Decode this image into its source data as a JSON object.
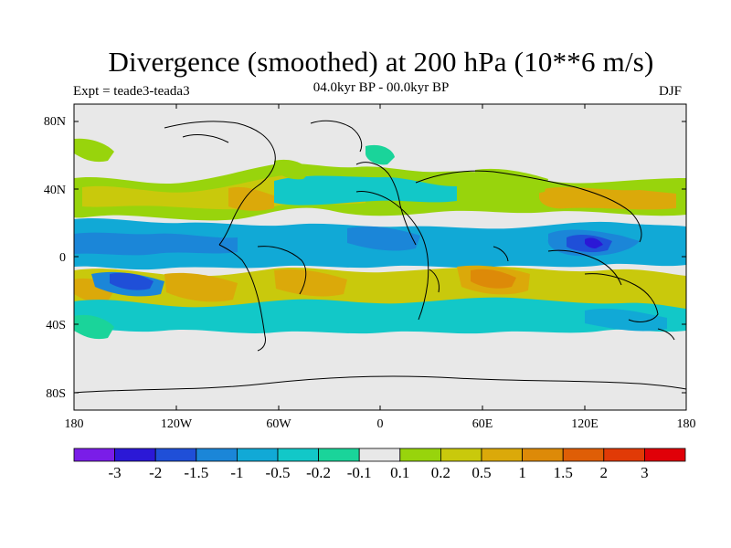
{
  "header": {
    "title": "Divergence (smoothed) at 200 hPa (10**6 m/s)",
    "experiment": "Expt = teade3-teada3",
    "period": "04.0kyr BP - 00.0kyr BP",
    "season": "DJF"
  },
  "chart_data": {
    "type": "heatmap",
    "title": "Divergence (smoothed) at 200 hPa (10**6 m/s)",
    "subtitle_left": "Expt = teade3-teada3",
    "subtitle_center": "04.0kyr BP - 00.0kyr BP",
    "subtitle_right": "DJF",
    "projection": "cylindrical equidistant, 180 to 180 longitude",
    "x_range": [
      -180,
      180
    ],
    "y_range": [
      -90,
      90
    ],
    "x_ticks": [
      "180",
      "120W",
      "60W",
      "0",
      "60E",
      "120E",
      "180"
    ],
    "y_ticks": [
      "80N",
      "40N",
      "0",
      "40S",
      "80S"
    ],
    "colorbar": {
      "labels": [
        "-3",
        "-2",
        "-1.5",
        "-1",
        "-0.5",
        "-0.2",
        "-0.1",
        "0.1",
        "0.2",
        "0.5",
        "1",
        "1.5",
        "2",
        "3"
      ],
      "colors": [
        "#7a1de8",
        "#2b18d6",
        "#1f4fd8",
        "#1b86d8",
        "#11a9d6",
        "#12c8c8",
        "#1ad49a",
        "#e8e8e8",
        "#98d40c",
        "#c9c90c",
        "#dba90a",
        "#dd8a08",
        "#df5e06",
        "#e13a06",
        "#e00008"
      ]
    },
    "features": [
      {
        "name": "tropical Pacific negative band",
        "lon_from": -180,
        "lon_to": -110,
        "lat": -10,
        "level": "-1 to -2"
      },
      {
        "name": "west Pacific / Indonesia negative core",
        "lon_from": 120,
        "lon_to": 160,
        "lat": 5,
        "level": "-1.5 to -2"
      },
      {
        "name": "Indian Ocean positive",
        "lon_from": 55,
        "lon_to": 90,
        "lat": -10,
        "level": "0.5 to 1.5"
      },
      {
        "name": "South Pacific positive band",
        "lon_from": -180,
        "lon_to": -90,
        "lat": -28,
        "level": "0.2 to 1"
      },
      {
        "name": "midlatitude Northern Hemisphere mixed",
        "lon_from": -180,
        "lon_to": 180,
        "lat": 40,
        "level": "-0.5 to 0.5"
      }
    ]
  },
  "colors": {
    "ocean_bg": "#e8e8e8",
    "coast": "#000000"
  }
}
